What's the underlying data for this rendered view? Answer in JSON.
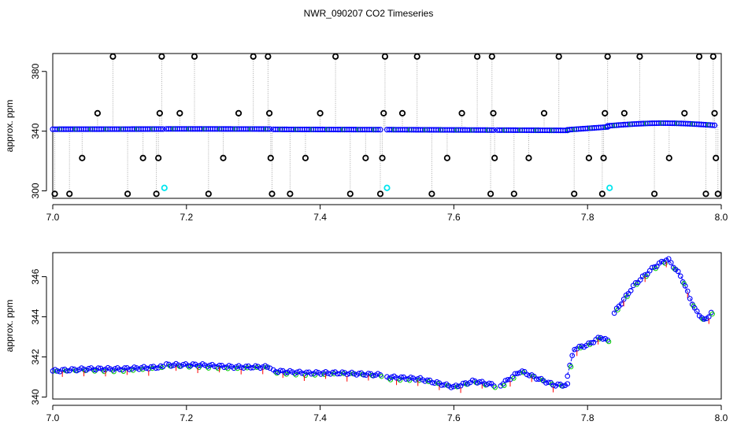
{
  "title": "NWR_090207  CO2 Timeseries",
  "colors": {
    "outlier": "#000000",
    "main": "#0000ff",
    "secondary": "#00cc00",
    "flag": "#ff0000",
    "highlight": "#00e5ee",
    "guide": "#aaaaaa"
  },
  "chart_data": [
    {
      "type": "scatter",
      "ylabel": "approx. ppm",
      "xlim": [
        7.0,
        8.0
      ],
      "ylim": [
        295,
        392
      ],
      "xticks": [
        "7.0",
        "7.2",
        "7.4",
        "7.6",
        "7.8",
        "8.0"
      ],
      "yticks": [
        "300",
        "340",
        "380"
      ],
      "main_series": {
        "note": "",
        "segments": [
          {
            "x": [
              7.0,
              7.165
            ],
            "y": [
              341.3,
              341.4
            ]
          },
          {
            "x": [
              7.17,
              7.325
            ],
            "y": [
              341.5,
              341.4
            ]
          },
          {
            "x": [
              7.33,
              7.49
            ],
            "y": [
              341.2,
              341.0
            ]
          },
          {
            "x": [
              7.5,
              7.66
            ],
            "y": [
              341.0,
              340.7
            ]
          },
          {
            "x": [
              7.665,
              7.77
            ],
            "y": [
              340.7,
              340.5
            ]
          },
          {
            "x": [
              7.77,
              7.83
            ],
            "y": [
              340.9,
              342.8
            ]
          },
          {
            "x": [
              7.83,
              7.99
            ],
            "y": [
              343.5,
              344.0
            ]
          }
        ]
      },
      "outliers": [
        {
          "x": 7.003,
          "y": 298.0
        },
        {
          "x": 7.025,
          "y": 298.0
        },
        {
          "x": 7.044,
          "y": 322.0
        },
        {
          "x": 7.067,
          "y": 352.0
        },
        {
          "x": 7.09,
          "y": 390.0
        },
        {
          "x": 7.112,
          "y": 298.0
        },
        {
          "x": 7.135,
          "y": 322.0
        },
        {
          "x": 7.155,
          "y": 298.0
        },
        {
          "x": 7.158,
          "y": 322.0
        },
        {
          "x": 7.16,
          "y": 352.0
        },
        {
          "x": 7.163,
          "y": 390.0
        },
        {
          "x": 7.19,
          "y": 352.0
        },
        {
          "x": 7.212,
          "y": 390.0
        },
        {
          "x": 7.233,
          "y": 298.0
        },
        {
          "x": 7.255,
          "y": 322.0
        },
        {
          "x": 7.278,
          "y": 352.0
        },
        {
          "x": 7.3,
          "y": 390.0
        },
        {
          "x": 7.322,
          "y": 390.0
        },
        {
          "x": 7.324,
          "y": 352.0
        },
        {
          "x": 7.326,
          "y": 322.0
        },
        {
          "x": 7.328,
          "y": 298.0
        },
        {
          "x": 7.355,
          "y": 298.0
        },
        {
          "x": 7.378,
          "y": 322.0
        },
        {
          "x": 7.4,
          "y": 352.0
        },
        {
          "x": 7.423,
          "y": 390.0
        },
        {
          "x": 7.445,
          "y": 298.0
        },
        {
          "x": 7.468,
          "y": 322.0
        },
        {
          "x": 7.49,
          "y": 298.0
        },
        {
          "x": 7.493,
          "y": 322.0
        },
        {
          "x": 7.495,
          "y": 352.0
        },
        {
          "x": 7.497,
          "y": 390.0
        },
        {
          "x": 7.523,
          "y": 352.0
        },
        {
          "x": 7.545,
          "y": 390.0
        },
        {
          "x": 7.567,
          "y": 298.0
        },
        {
          "x": 7.59,
          "y": 322.0
        },
        {
          "x": 7.612,
          "y": 352.0
        },
        {
          "x": 7.635,
          "y": 390.0
        },
        {
          "x": 7.655,
          "y": 298.0
        },
        {
          "x": 7.657,
          "y": 390.0
        },
        {
          "x": 7.659,
          "y": 352.0
        },
        {
          "x": 7.661,
          "y": 322.0
        },
        {
          "x": 7.69,
          "y": 298.0
        },
        {
          "x": 7.712,
          "y": 322.0
        },
        {
          "x": 7.735,
          "y": 352.0
        },
        {
          "x": 7.757,
          "y": 390.0
        },
        {
          "x": 7.78,
          "y": 298.0
        },
        {
          "x": 7.802,
          "y": 322.0
        },
        {
          "x": 7.822,
          "y": 298.0
        },
        {
          "x": 7.824,
          "y": 322.0
        },
        {
          "x": 7.826,
          "y": 352.0
        },
        {
          "x": 7.83,
          "y": 390.0
        },
        {
          "x": 7.855,
          "y": 352.0
        },
        {
          "x": 7.878,
          "y": 390.0
        },
        {
          "x": 7.9,
          "y": 298.0
        },
        {
          "x": 7.922,
          "y": 322.0
        },
        {
          "x": 7.945,
          "y": 352.0
        },
        {
          "x": 7.967,
          "y": 390.0
        },
        {
          "x": 7.977,
          "y": 298.0
        },
        {
          "x": 7.988,
          "y": 390.0
        },
        {
          "x": 7.99,
          "y": 352.0
        },
        {
          "x": 7.992,
          "y": 322.0
        },
        {
          "x": 7.995,
          "y": 298.0
        }
      ],
      "highlights": [
        {
          "x": 7.167,
          "y": 302.0
        },
        {
          "x": 7.5,
          "y": 302.0
        },
        {
          "x": 7.833,
          "y": 302.0
        }
      ]
    },
    {
      "type": "line",
      "ylabel": "approx. ppm",
      "xlim": [
        7.0,
        8.0
      ],
      "ylim": [
        339.9,
        347.2
      ],
      "xticks": [
        "7.0",
        "7.2",
        "7.4",
        "7.6",
        "7.8",
        "8.0"
      ],
      "yticks": [
        "340",
        "342",
        "344",
        "346"
      ],
      "segments": [
        {
          "x": [
            7.0,
            7.05,
            7.1,
            7.165
          ],
          "y": [
            341.3,
            341.4,
            341.4,
            341.5
          ]
        },
        {
          "x": [
            7.17,
            7.22,
            7.27,
            7.325
          ],
          "y": [
            341.6,
            341.6,
            341.5,
            341.5
          ]
        },
        {
          "x": [
            7.33,
            7.38,
            7.43,
            7.49
          ],
          "y": [
            341.3,
            341.2,
            341.2,
            341.1
          ]
        },
        {
          "x": [
            7.5,
            7.55,
            7.6,
            7.63,
            7.66
          ],
          "y": [
            341.0,
            340.9,
            340.5,
            340.8,
            340.6
          ]
        },
        {
          "x": [
            7.67,
            7.7,
            7.72,
            7.75,
            7.77
          ],
          "y": [
            340.6,
            341.3,
            341.0,
            340.6,
            340.6
          ]
        },
        {
          "x": [
            7.77,
            7.78,
            7.8,
            7.82,
            7.83
          ],
          "y": [
            341.1,
            342.4,
            342.6,
            343.0,
            342.8
          ]
        },
        {
          "x": [
            7.84,
            7.87,
            7.9,
            7.92,
            7.94,
            7.96,
            7.975,
            7.985
          ],
          "y": [
            344.2,
            345.6,
            346.5,
            346.9,
            346.0,
            344.4,
            343.8,
            344.2
          ]
        }
      ]
    }
  ]
}
